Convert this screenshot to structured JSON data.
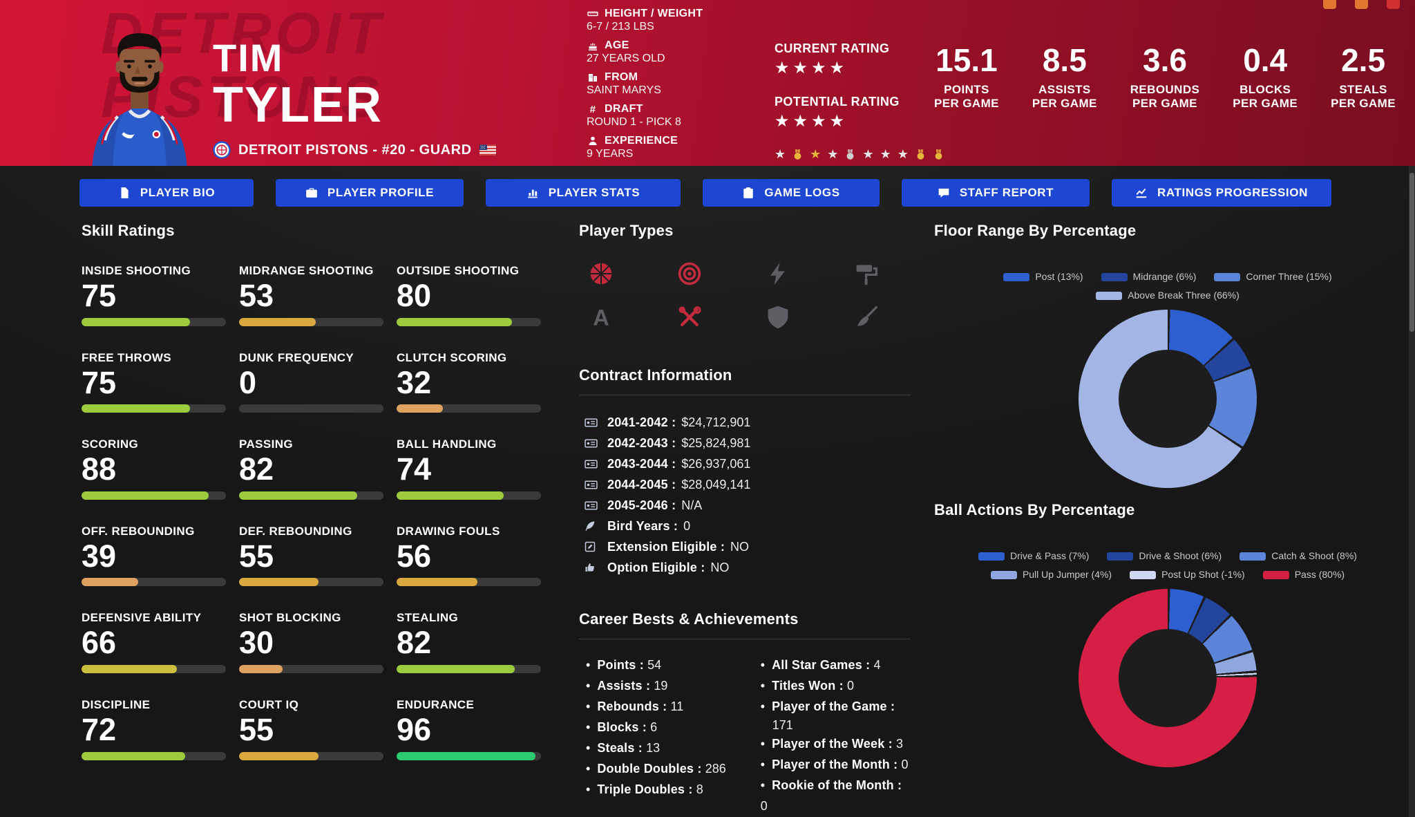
{
  "theme": {
    "accent_red": "#cf1434",
    "tab_blue": "#1d47d2",
    "chart_hole": "#1d1d1d"
  },
  "window_buttons": [
    {
      "color": "#e0762f"
    },
    {
      "color": "#e0762f"
    },
    {
      "color": "#d03030"
    }
  ],
  "header": {
    "player_first": "TIM",
    "player_last": "TYLER",
    "team_line": "DETROIT PISTONS - #20 - GUARD",
    "watermark_line1": "DETROIT",
    "watermark_line2": "PISTONS",
    "bio": [
      {
        "icon": "ruler-icon",
        "label": "HEIGHT / WEIGHT",
        "value": "6-7 / 213 LBS"
      },
      {
        "icon": "cake-icon",
        "label": "AGE",
        "value": "27 YEARS OLD"
      },
      {
        "icon": "building-icon",
        "label": "FROM",
        "value": "SAINT MARYS"
      },
      {
        "icon": "hash-icon",
        "label": "DRAFT",
        "value": "ROUND 1 - PICK 8"
      },
      {
        "icon": "person-icon",
        "label": "EXPERIENCE",
        "value": "9 YEARS"
      }
    ],
    "current_rating_label": "CURRENT RATING",
    "current_rating_stars": 4,
    "potential_rating_label": "POTENTIAL RATING",
    "potential_rating_stars": 4,
    "awards": [
      {
        "type": "star",
        "color": "#e8e8e8"
      },
      {
        "type": "medal",
        "color": "#e7b63b"
      },
      {
        "type": "star",
        "color": "#e7b63b"
      },
      {
        "type": "star",
        "color": "#e8e8e8"
      },
      {
        "type": "medal",
        "color": "#cfcfcf"
      },
      {
        "type": "star",
        "color": "#e8e8e8"
      },
      {
        "type": "star",
        "color": "#e8e8e8"
      },
      {
        "type": "star",
        "color": "#e8e8e8"
      },
      {
        "type": "medal",
        "color": "#e7b63b"
      },
      {
        "type": "medal",
        "color": "#e7b63b"
      }
    ],
    "stats": [
      {
        "value": "15.1",
        "label1": "POINTS",
        "label2": "PER GAME"
      },
      {
        "value": "8.5",
        "label1": "ASSISTS",
        "label2": "PER GAME"
      },
      {
        "value": "3.6",
        "label1": "REBOUNDS",
        "label2": "PER GAME"
      },
      {
        "value": "0.4",
        "label1": "BLOCKS",
        "label2": "PER GAME"
      },
      {
        "value": "2.5",
        "label1": "STEALS",
        "label2": "PER GAME"
      }
    ]
  },
  "tabs": [
    {
      "label": "PLAYER BIO",
      "icon": "file-icon"
    },
    {
      "label": "PLAYER PROFILE",
      "icon": "briefcase-icon"
    },
    {
      "label": "PLAYER STATS",
      "icon": "bar-chart-icon"
    },
    {
      "label": "GAME LOGS",
      "icon": "clipboard-icon"
    },
    {
      "label": "STAFF REPORT",
      "icon": "chat-icon"
    },
    {
      "label": "RATINGS PROGRESSION",
      "icon": "line-chart-icon"
    }
  ],
  "skills": {
    "title": "Skill Ratings",
    "items": [
      {
        "label": "INSIDE SHOOTING",
        "value": 75
      },
      {
        "label": "MIDRANGE SHOOTING",
        "value": 53
      },
      {
        "label": "OUTSIDE SHOOTING",
        "value": 80
      },
      {
        "label": "FREE THROWS",
        "value": 75
      },
      {
        "label": "DUNK FREQUENCY",
        "value": 0
      },
      {
        "label": "CLUTCH SCORING",
        "value": 32
      },
      {
        "label": "SCORING",
        "value": 88
      },
      {
        "label": "PASSING",
        "value": 82
      },
      {
        "label": "BALL HANDLING",
        "value": 74
      },
      {
        "label": "OFF. REBOUNDING",
        "value": 39
      },
      {
        "label": "DEF. REBOUNDING",
        "value": 55
      },
      {
        "label": "DRAWING FOULS",
        "value": 56
      },
      {
        "label": "DEFENSIVE ABILITY",
        "value": 66
      },
      {
        "label": "SHOT BLOCKING",
        "value": 30
      },
      {
        "label": "STEALING",
        "value": 82
      },
      {
        "label": "DISCIPLINE",
        "value": 72
      },
      {
        "label": "COURT IQ",
        "value": 55
      },
      {
        "label": "ENDURANCE",
        "value": 96
      }
    ]
  },
  "player_types": {
    "title": "Player Types",
    "items": [
      {
        "icon": "basketball-icon",
        "active": true
      },
      {
        "icon": "target-icon",
        "active": true
      },
      {
        "icon": "lightning-icon",
        "active": false
      },
      {
        "icon": "paint-roller-icon",
        "active": false
      },
      {
        "icon": "letter-a-icon",
        "active": false
      },
      {
        "icon": "tools-icon",
        "active": true
      },
      {
        "icon": "shield-icon",
        "active": false
      },
      {
        "icon": "broom-icon",
        "active": false
      }
    ]
  },
  "contract": {
    "title": "Contract Information",
    "rows": [
      {
        "icon": "money-check-icon",
        "label": "2041-2042 :",
        "value": "$24,712,901"
      },
      {
        "icon": "money-check-icon",
        "label": "2042-2043 :",
        "value": "$25,824,981"
      },
      {
        "icon": "money-check-icon",
        "label": "2043-2044 :",
        "value": "$26,937,061"
      },
      {
        "icon": "money-check-icon",
        "label": "2044-2045 :",
        "value": "$28,049,141"
      },
      {
        "icon": "money-check-icon",
        "label": "2045-2046 :",
        "value": "N/A"
      },
      {
        "icon": "feather-icon",
        "label": "Bird Years :",
        "value": "0"
      },
      {
        "icon": "pen-square-icon",
        "label": "Extension Eligible :",
        "value": "NO"
      },
      {
        "icon": "thumbs-up-icon",
        "label": "Option Eligible :",
        "value": "NO"
      }
    ]
  },
  "career": {
    "title": "Career Bests & Achievements",
    "left": [
      {
        "label": "Points :",
        "value": "54"
      },
      {
        "label": "Assists :",
        "value": "19"
      },
      {
        "label": "Rebounds :",
        "value": "11"
      },
      {
        "label": "Blocks :",
        "value": "6"
      },
      {
        "label": "Steals :",
        "value": "13"
      },
      {
        "label": "Double Doubles :",
        "value": "286"
      },
      {
        "label": "Triple Doubles :",
        "value": "8"
      }
    ],
    "right": [
      {
        "label": "All Star Games :",
        "value": "4"
      },
      {
        "label": "Titles Won :",
        "value": "0"
      },
      {
        "label": "Player of the Game :",
        "value": "171",
        "wrap": true
      },
      {
        "label": "Player of the Week :",
        "value": "3"
      },
      {
        "label": "Player of the Month :",
        "value": "0"
      },
      {
        "label": "Rookie of the Month :",
        "value": "0"
      }
    ]
  },
  "chart_data": [
    {
      "type": "pie",
      "donut": true,
      "title": "Floor Range By Percentage",
      "labels": [
        "Post (13%)",
        "Midrange (6%)",
        "Corner Three (15%)",
        "Above Break Three (66%)"
      ],
      "values": [
        13,
        6,
        15,
        66
      ],
      "colors": [
        "#2e5fd0",
        "#24459e",
        "#5c84d8",
        "#a3b5e4"
      ],
      "legend_position": "top"
    },
    {
      "type": "pie",
      "donut": true,
      "title": "Ball Actions By Percentage",
      "labels": [
        "Drive & Pass (7%)",
        "Drive & Shoot (6%)",
        "Catch & Shoot (8%)",
        "Pull Up Jumper (4%)",
        "Post Up Shot (-1%)",
        "Pass (80%)"
      ],
      "values": [
        7,
        6,
        8,
        4,
        -1,
        80
      ],
      "colors": [
        "#2e5fd0",
        "#24459e",
        "#5c84d8",
        "#8fa6de",
        "#cdd8f0",
        "#d51f44"
      ],
      "legend_position": "top"
    }
  ]
}
